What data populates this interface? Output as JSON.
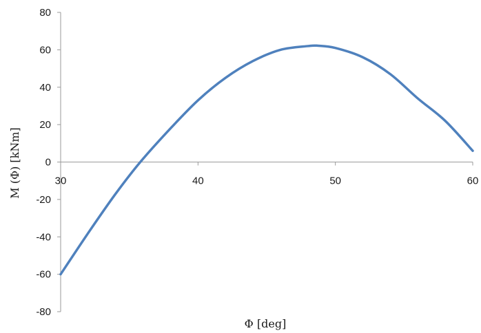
{
  "chart_data": {
    "type": "line",
    "title": "",
    "xlabel": "Φ [deg]",
    "ylabel": "M (Φ) [kNm]",
    "xlim": [
      30,
      60
    ],
    "ylim": [
      -80,
      80
    ],
    "x_ticks": [
      30,
      40,
      50,
      60
    ],
    "y_ticks": [
      -80,
      -60,
      -40,
      -20,
      0,
      20,
      40,
      60,
      80
    ],
    "grid": false,
    "legend": "none",
    "series": [
      {
        "color": "#4f81bd",
        "x": [
          30,
          32,
          34,
          35.8,
          38,
          40,
          42,
          44,
          46,
          48,
          48.7,
          50,
          52,
          54,
          56,
          58,
          60
        ],
        "y": [
          -60,
          -38,
          -17,
          0,
          18,
          33,
          45,
          54,
          60,
          62,
          62.2,
          61,
          56,
          47,
          34,
          22,
          6
        ]
      }
    ]
  }
}
